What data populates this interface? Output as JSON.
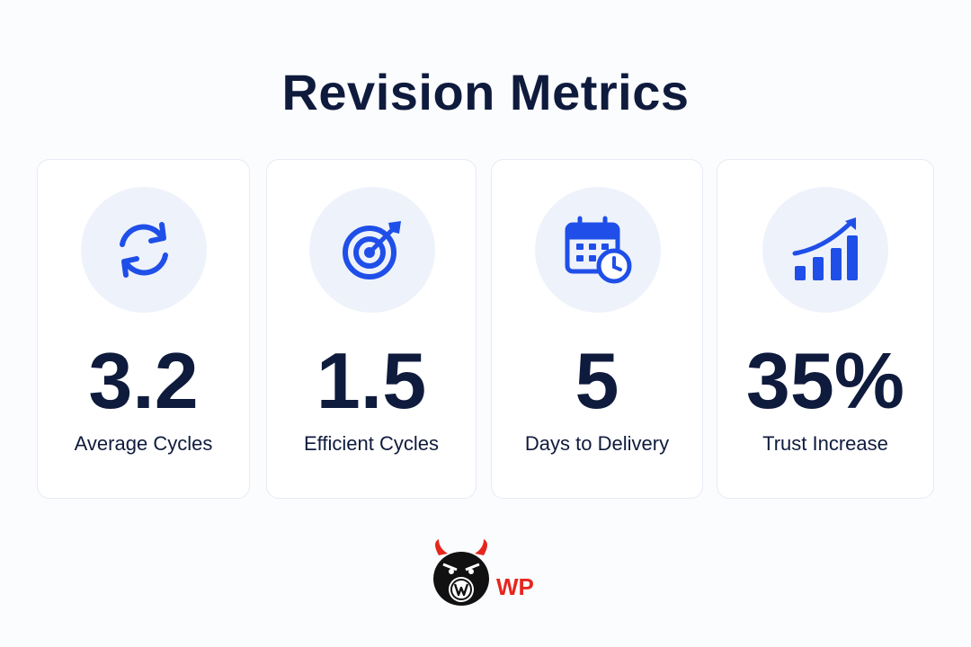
{
  "title": "Revision Metrics",
  "accent_color": "#1f4fe8",
  "metrics": [
    {
      "icon": "refresh-icon",
      "value": "3.2",
      "label": "Average Cycles"
    },
    {
      "icon": "target-icon",
      "value": "1.5",
      "label": "Efficient Cycles"
    },
    {
      "icon": "calendar-clock-icon",
      "value": "5",
      "label": "Days to Delivery"
    },
    {
      "icon": "growth-chart-icon",
      "value": "35%",
      "label": "Trust Increase"
    }
  ],
  "logo": {
    "text": "WP"
  }
}
